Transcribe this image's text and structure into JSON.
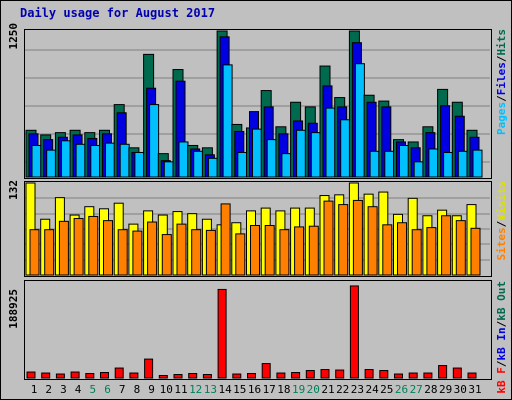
{
  "title": "Daily usage for August 2017",
  "chart_data": [
    {
      "type": "bar",
      "categories": [
        "1",
        "2",
        "3",
        "4",
        "5",
        "6",
        "7",
        "8",
        "9",
        "10",
        "11",
        "12",
        "13",
        "14",
        "15",
        "16",
        "17",
        "18",
        "19",
        "20",
        "21",
        "22",
        "23",
        "24",
        "25",
        "26",
        "27",
        "28",
        "29",
        "30",
        "31"
      ],
      "weekend_days": [
        "5",
        "6",
        "12",
        "13",
        "19",
        "20",
        "26",
        "27"
      ],
      "ymax_label": "1250",
      "ylim": [
        0,
        1250
      ],
      "series": [
        {
          "name": "Hits",
          "color": "#006a4f",
          "values": [
            400,
            360,
            380,
            400,
            380,
            400,
            620,
            250,
            1050,
            200,
            920,
            270,
            250,
            1250,
            450,
            420,
            740,
            430,
            640,
            600,
            950,
            680,
            1250,
            700,
            650,
            320,
            300,
            430,
            750,
            640,
            400
          ]
        },
        {
          "name": "Files",
          "color": "#0000e0",
          "values": [
            370,
            320,
            340,
            360,
            330,
            370,
            550,
            210,
            760,
            140,
            820,
            240,
            190,
            1200,
            390,
            560,
            600,
            370,
            480,
            460,
            780,
            600,
            1150,
            640,
            600,
            300,
            250,
            380,
            610,
            520,
            340
          ]
        },
        {
          "name": "Pages",
          "color": "#00c0ff",
          "values": [
            270,
            230,
            310,
            280,
            270,
            290,
            280,
            210,
            620,
            130,
            300,
            220,
            160,
            960,
            210,
            410,
            320,
            200,
            400,
            380,
            590,
            490,
            970,
            220,
            220,
            270,
            130,
            240,
            210,
            220,
            230
          ]
        }
      ]
    },
    {
      "type": "bar",
      "categories": [
        "1",
        "2",
        "3",
        "4",
        "5",
        "6",
        "7",
        "8",
        "9",
        "10",
        "11",
        "12",
        "13",
        "14",
        "15",
        "16",
        "17",
        "18",
        "19",
        "20",
        "21",
        "22",
        "23",
        "24",
        "25",
        "26",
        "27",
        "28",
        "29",
        "30",
        "31"
      ],
      "ymax_label": "132",
      "ylim": [
        0,
        132
      ],
      "series": [
        {
          "name": "Visits",
          "color": "#ffff00",
          "values": [
            132,
            80,
            111,
            86,
            98,
            95,
            103,
            73,
            92,
            86,
            91,
            88,
            80,
            72,
            75,
            92,
            96,
            92,
            96,
            96,
            114,
            115,
            132,
            116,
            119,
            87,
            110,
            85,
            93,
            85,
            101
          ]
        },
        {
          "name": "Sites",
          "color": "#ff8000",
          "values": [
            65,
            65,
            77,
            81,
            84,
            78,
            65,
            63,
            76,
            58,
            73,
            65,
            64,
            102,
            59,
            71,
            71,
            65,
            69,
            70,
            106,
            101,
            107,
            98,
            72,
            75,
            65,
            68,
            85,
            78,
            67
          ]
        }
      ]
    },
    {
      "type": "bar",
      "categories": [
        "1",
        "2",
        "3",
        "4",
        "5",
        "6",
        "7",
        "8",
        "9",
        "10",
        "11",
        "12",
        "13",
        "14",
        "15",
        "16",
        "17",
        "18",
        "19",
        "20",
        "21",
        "22",
        "23",
        "24",
        "25",
        "26",
        "27",
        "28",
        "29",
        "30",
        "31"
      ],
      "ymax_label": "188925",
      "ylim": [
        0,
        188925
      ],
      "series": [
        {
          "name": "kB F",
          "color": "#ff0000",
          "values": [
            12000,
            10000,
            8000,
            12000,
            9000,
            11000,
            20000,
            10000,
            38000,
            5000,
            7000,
            9000,
            7000,
            178000,
            8000,
            9000,
            29000,
            10000,
            11000,
            15000,
            17000,
            16000,
            185000,
            17000,
            15000,
            8000,
            10000,
            10000,
            25000,
            20000,
            10000
          ]
        }
      ]
    }
  ],
  "legend_top": [
    "Pages",
    "/",
    "Files",
    "/",
    "Hits"
  ],
  "legend_mid": [
    "Sites",
    "/",
    "Visits"
  ],
  "legend_bot": [
    "kB F",
    "/",
    "kB In",
    "/",
    "kB Out"
  ]
}
